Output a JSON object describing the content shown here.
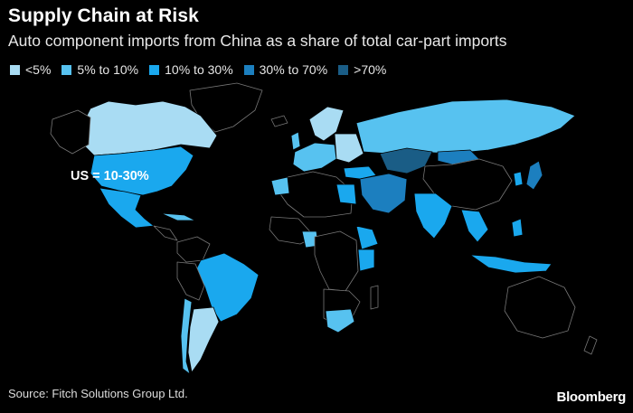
{
  "header": {
    "title": "Supply Chain at Risk",
    "subtitle": "Auto component imports from China as a share of total car-part imports"
  },
  "legend": {
    "items": [
      {
        "label": "<5%",
        "color": "#a9dcf3"
      },
      {
        "label": "5% to 10%",
        "color": "#57c2f0"
      },
      {
        "label": "10% to 30%",
        "color": "#1aa8ee"
      },
      {
        "label": "30% to 70%",
        "color": "#1c7fbf"
      },
      {
        "label": ">70%",
        "color": "#1a5d86"
      }
    ]
  },
  "annotation": {
    "us_label": "US = 10-30%"
  },
  "footer": {
    "source": "Source: Fitch Solutions Group Ltd.",
    "brand": "Bloomberg"
  }
}
